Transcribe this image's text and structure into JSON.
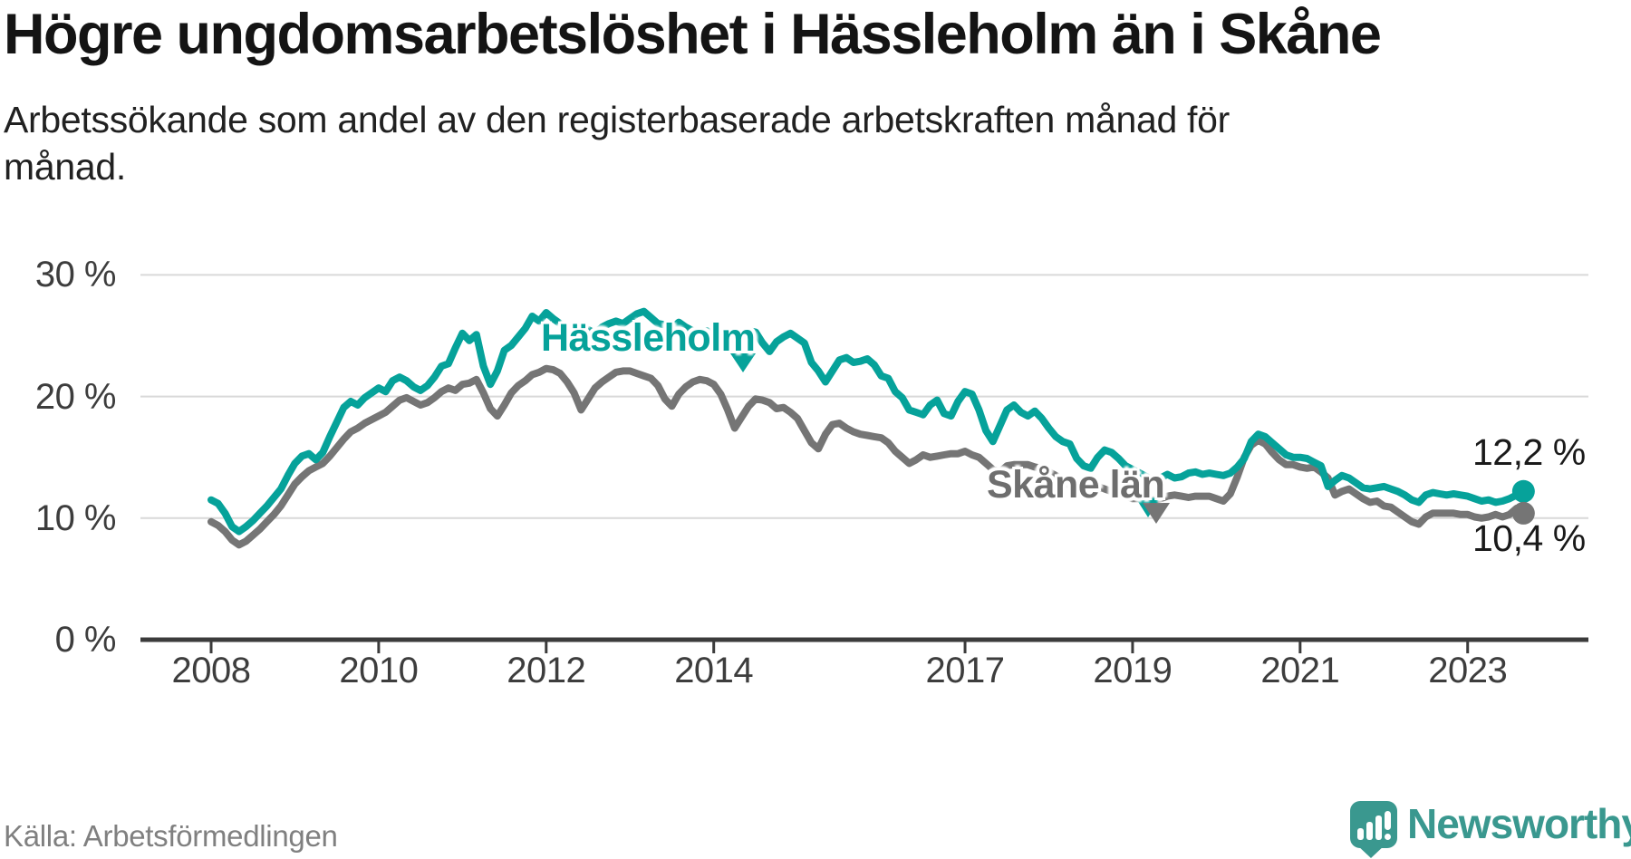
{
  "title": "Högre ungdomsarbetslöshet i Hässleholm än i Skåne",
  "subtitle": {
    "full": "Arbetssökande som andel av den registerbaserade arbetskraften månad för månad.",
    "lines": [
      "Arbetssökande som andel av den registerbaserade arbetskraften månad för",
      "månad."
    ]
  },
  "source": "Källa: Arbetsförmedlingen",
  "logo": {
    "text": "Newsworthy",
    "color": "#3a988f"
  },
  "colors": {
    "hassleholm": "#06a29a",
    "skane": "#757575",
    "skane_label": "#6e6e6e",
    "axis": "#3b3b3b",
    "grid": "#d9d9d9",
    "text_dark": "#1a1a1a"
  },
  "chart_data": {
    "type": "line",
    "title": "Högre ungdomsarbetslöshet i Hässleholm än i Skåne",
    "ylabel": "Arbetssökande som andel av den registerbaserade arbetskraften",
    "unit": "percent",
    "frequency": "monthly",
    "x_start": {
      "year": 2008,
      "month": 1
    },
    "x_end": {
      "year": 2023,
      "month": 9
    },
    "ylim": [
      0,
      32
    ],
    "grid": "horizontal",
    "legend_position": "inline-labels",
    "y_ticks": [
      {
        "value": 0,
        "label": "0 %"
      },
      {
        "value": 10,
        "label": "10 %"
      },
      {
        "value": 20,
        "label": "20 %"
      },
      {
        "value": 30,
        "label": "30 %"
      }
    ],
    "x_ticks": [
      {
        "year": 2008,
        "label": "2008"
      },
      {
        "year": 2010,
        "label": "2010"
      },
      {
        "year": 2012,
        "label": "2012"
      },
      {
        "year": 2014,
        "label": "2014"
      },
      {
        "year": 2017,
        "label": "2017"
      },
      {
        "year": 2019,
        "label": "2019"
      },
      {
        "year": 2021,
        "label": "2021"
      },
      {
        "year": 2023,
        "label": "2023"
      }
    ],
    "series": [
      {
        "name": "Hässleholm",
        "color": "#06a29a",
        "end_label": "12,2 %",
        "end_value": 12.2,
        "values": [
          11.5,
          11.2,
          10.4,
          9.3,
          8.9,
          9.3,
          9.8,
          10.4,
          11.0,
          11.7,
          12.4,
          13.5,
          14.5,
          15.1,
          15.3,
          14.8,
          15.4,
          16.7,
          17.9,
          19.1,
          19.6,
          19.3,
          19.9,
          20.3,
          20.7,
          20.4,
          21.3,
          21.6,
          21.3,
          20.8,
          20.5,
          20.9,
          21.6,
          22.5,
          22.7,
          24.0,
          25.2,
          24.6,
          25.1,
          22.5,
          21.0,
          22.1,
          23.8,
          24.2,
          24.9,
          25.6,
          26.6,
          26.2,
          26.9,
          26.4,
          26.0,
          25.3,
          24.6,
          25.0,
          25.5,
          25.2,
          25.7,
          26.0,
          26.2,
          26.0,
          26.4,
          26.8,
          27.0,
          26.5,
          26.0,
          25.9,
          25.6,
          26.1,
          25.7,
          25.4,
          25.2,
          25.4,
          25.2,
          24.8,
          24.5,
          24.8,
          25.1,
          25.4,
          25.3,
          24.4,
          23.7,
          24.5,
          24.9,
          25.2,
          24.8,
          24.4,
          22.8,
          22.1,
          21.2,
          22.1,
          23.0,
          23.2,
          22.8,
          22.9,
          23.1,
          22.6,
          21.7,
          21.5,
          20.4,
          19.9,
          18.9,
          18.7,
          18.5,
          19.3,
          19.7,
          18.6,
          18.4,
          19.6,
          20.4,
          20.2,
          18.9,
          17.2,
          16.3,
          17.6,
          18.9,
          19.3,
          18.7,
          18.4,
          18.8,
          18.2,
          17.4,
          16.7,
          16.3,
          16.1,
          14.9,
          14.3,
          14.1,
          15.0,
          15.6,
          15.4,
          14.9,
          14.3,
          14.0,
          13.7,
          13.4,
          13.1,
          13.3,
          13.6,
          13.3,
          13.4,
          13.7,
          13.8,
          13.6,
          13.7,
          13.6,
          13.5,
          13.7,
          14.2,
          14.9,
          16.3,
          16.9,
          16.7,
          16.2,
          15.7,
          15.2,
          15.0,
          15.0,
          14.9,
          14.6,
          14.3,
          12.6,
          13.1,
          13.5,
          13.3,
          12.9,
          12.5,
          12.4,
          12.5,
          12.6,
          12.4,
          12.2,
          11.9,
          11.5,
          11.3,
          11.9,
          12.1,
          12.0,
          11.9,
          12.0,
          11.9,
          11.8,
          11.6,
          11.4,
          11.5,
          11.3,
          11.4,
          11.6,
          11.9,
          12.2
        ]
      },
      {
        "name": "Skåne län",
        "color": "#757575",
        "end_label": "10,4 %",
        "end_value": 10.4,
        "values": [
          9.7,
          9.4,
          8.9,
          8.2,
          7.8,
          8.1,
          8.6,
          9.1,
          9.7,
          10.3,
          11.0,
          11.9,
          12.8,
          13.4,
          13.9,
          14.2,
          14.5,
          15.1,
          15.8,
          16.5,
          17.1,
          17.4,
          17.8,
          18.1,
          18.4,
          18.7,
          19.2,
          19.7,
          19.9,
          19.6,
          19.3,
          19.5,
          19.9,
          20.4,
          20.7,
          20.5,
          21.0,
          21.1,
          21.4,
          20.3,
          19.0,
          18.4,
          19.3,
          20.3,
          20.9,
          21.3,
          21.8,
          22.0,
          22.3,
          22.2,
          21.9,
          21.2,
          20.3,
          18.9,
          19.8,
          20.7,
          21.2,
          21.6,
          22.0,
          22.1,
          22.1,
          21.9,
          21.7,
          21.5,
          20.9,
          19.8,
          19.2,
          20.2,
          20.8,
          21.2,
          21.4,
          21.3,
          21.0,
          20.2,
          18.9,
          17.4,
          18.3,
          19.2,
          19.8,
          19.7,
          19.5,
          19.0,
          19.1,
          18.7,
          18.2,
          17.2,
          16.2,
          15.7,
          16.9,
          17.7,
          17.8,
          17.4,
          17.1,
          16.9,
          16.8,
          16.7,
          16.6,
          16.2,
          15.5,
          15.0,
          14.5,
          14.8,
          15.2,
          15.0,
          15.1,
          15.2,
          15.3,
          15.3,
          15.5,
          15.2,
          15.0,
          14.5,
          14.0,
          13.8,
          14.3,
          14.4,
          14.4,
          14.4,
          14.2,
          14.1,
          13.8,
          13.5,
          13.1,
          12.7,
          12.3,
          12.1,
          12.4,
          12.6,
          12.4,
          12.2,
          11.9,
          11.8,
          11.6,
          11.6,
          11.5,
          11.5,
          11.6,
          11.8,
          11.9,
          11.8,
          11.7,
          11.8,
          11.8,
          11.8,
          11.6,
          11.4,
          12.0,
          13.4,
          15.0,
          16.0,
          16.4,
          16.1,
          15.4,
          14.8,
          14.4,
          14.4,
          14.2,
          14.1,
          14.2,
          13.8,
          13.3,
          11.9,
          12.2,
          12.4,
          12.0,
          11.6,
          11.3,
          11.4,
          11.0,
          10.9,
          10.5,
          10.1,
          9.7,
          9.5,
          10.1,
          10.4,
          10.4,
          10.4,
          10.4,
          10.3,
          10.3,
          10.1,
          10.0,
          10.1,
          10.3,
          10.1,
          10.3,
          10.8,
          10.4
        ]
      }
    ]
  }
}
